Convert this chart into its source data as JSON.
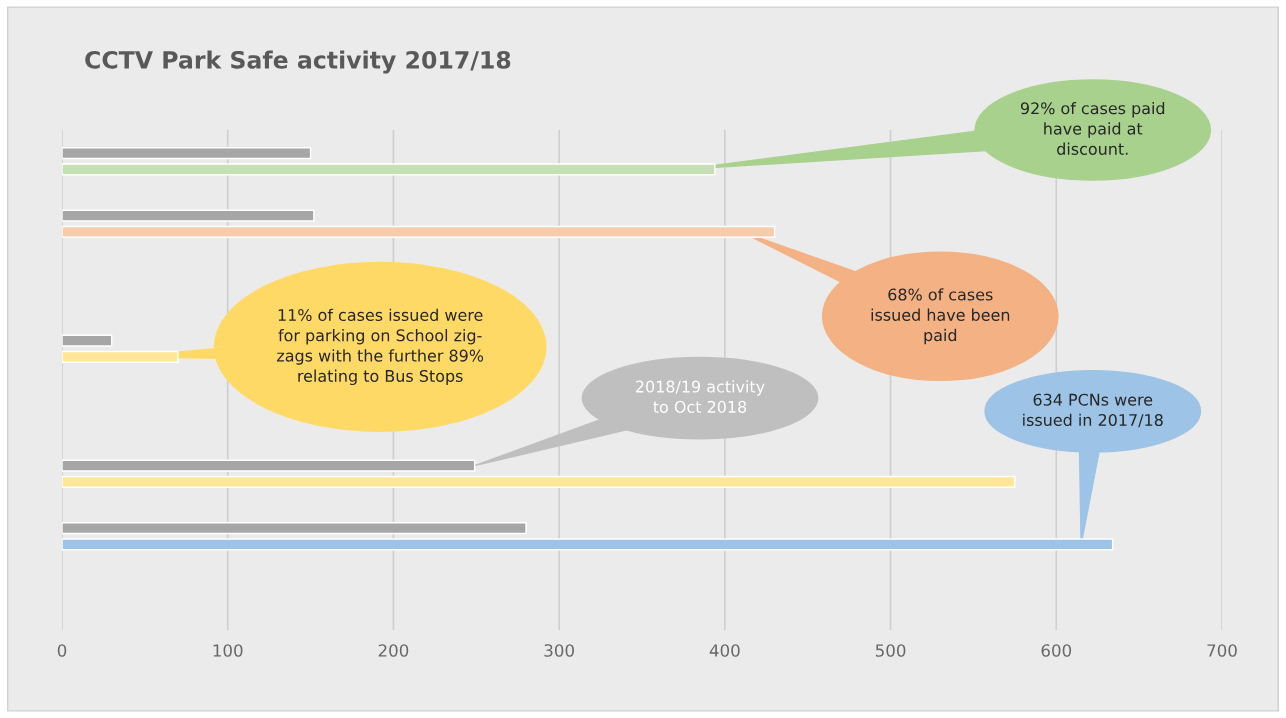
{
  "chart_data": {
    "type": "bar",
    "orientation": "horizontal",
    "title": "CCTV Park Safe activity 2017/18",
    "categories": [
      null,
      null,
      null,
      null,
      null,
      null,
      null,
      null
    ],
    "series": [
      {
        "color": "#a6a6a6",
        "values": [
          150,
          152,
          null,
          30,
          null,
          249,
          280,
          null
        ]
      },
      {
        "colors": [
          "#c5e0b4",
          "#f8cbad",
          null,
          "#ffe699",
          null,
          "#ffe699",
          "#9dc3e6",
          null
        ],
        "values": [
          394,
          430,
          null,
          70,
          null,
          575,
          634,
          null
        ]
      }
    ],
    "xlim": [
      0,
      700
    ],
    "xticks": [
      0,
      100,
      200,
      300,
      400,
      500,
      600,
      700
    ],
    "grid": "x",
    "tick_labels": "x",
    "legend": false,
    "annotations": [
      "92% of cases paid\nhave paid at\ndiscount.",
      "68% of cases\nissued have been\npaid",
      "11% of cases issued were\nfor parking on School zig-\nzags with the further 89%\nrelating to Bus Stops",
      "2018/19 activity\nto Oct 2018",
      "634 PCNs were\nissued in 2017/18"
    ]
  }
}
